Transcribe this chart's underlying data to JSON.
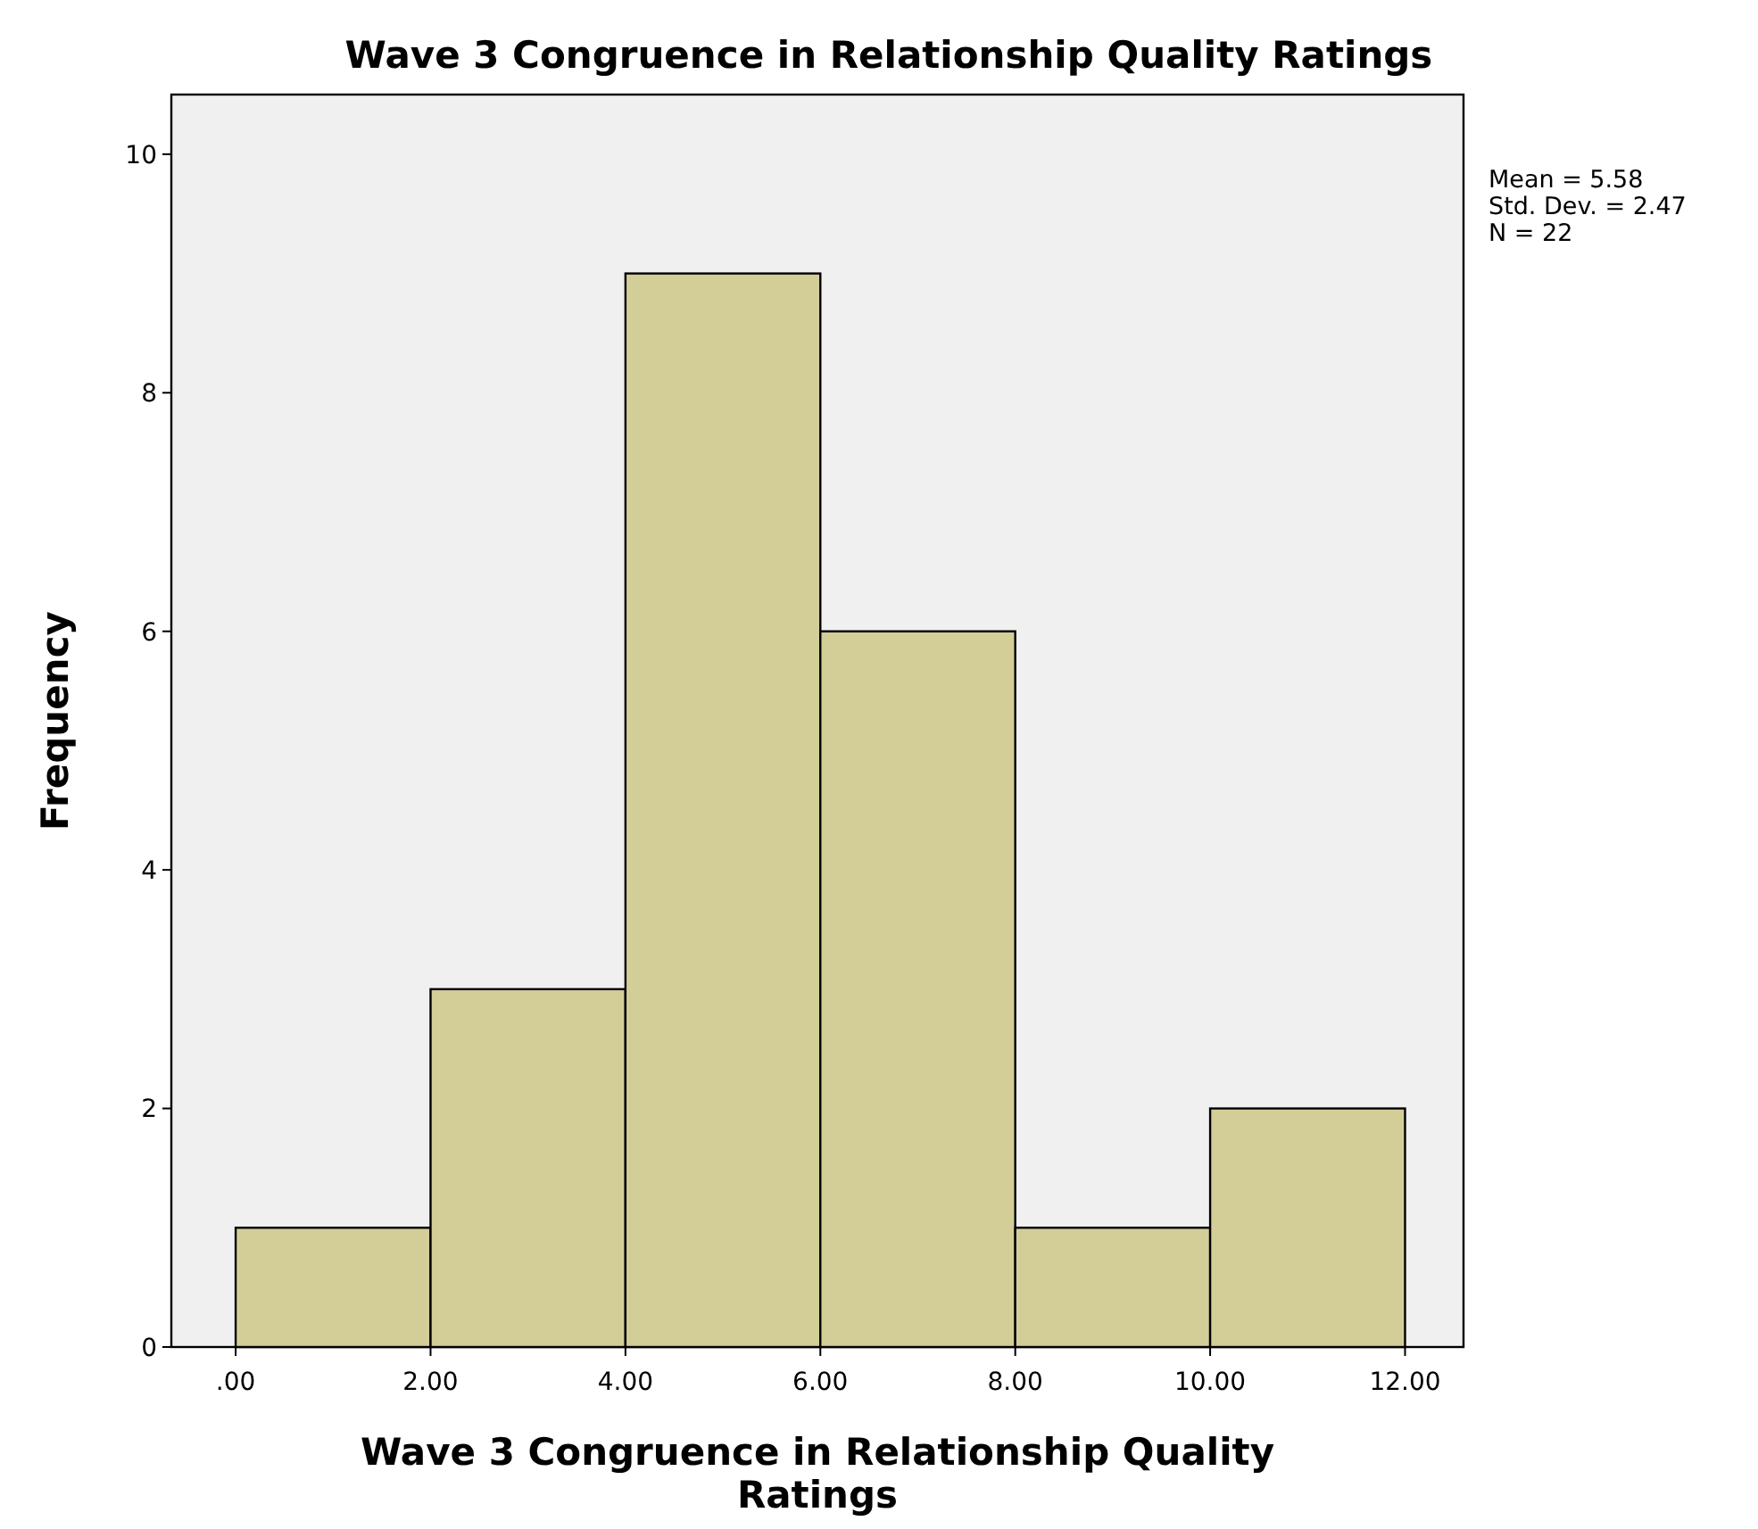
{
  "chart_data": {
    "type": "histogram",
    "title": "Wave 3 Congruence in Relationship Quality Ratings",
    "xlabel": "Wave 3 Congruence in Relationship Quality Ratings",
    "ylabel": "Frequency",
    "bins": [
      0,
      2,
      4,
      6,
      8,
      10,
      12
    ],
    "values": [
      1,
      3,
      9,
      6,
      1,
      2
    ],
    "color": "#d3ce98",
    "xlim": [
      -0.66,
      12.6
    ],
    "xticks": [
      {
        "value": 0,
        "label": ".00"
      },
      {
        "value": 2,
        "label": "2.00"
      },
      {
        "value": 4,
        "label": "4.00"
      },
      {
        "value": 6,
        "label": "6.00"
      },
      {
        "value": 8,
        "label": "8.00"
      },
      {
        "value": 10,
        "label": "10.00"
      },
      {
        "value": 12,
        "label": "12.00"
      }
    ],
    "ylim": [
      0,
      10.5
    ],
    "yticks": [
      0,
      2,
      4,
      6,
      8,
      10
    ],
    "annotations": [
      "Mean = 5.58",
      "Std. Dev. = 2.47",
      "N = 22"
    ]
  }
}
